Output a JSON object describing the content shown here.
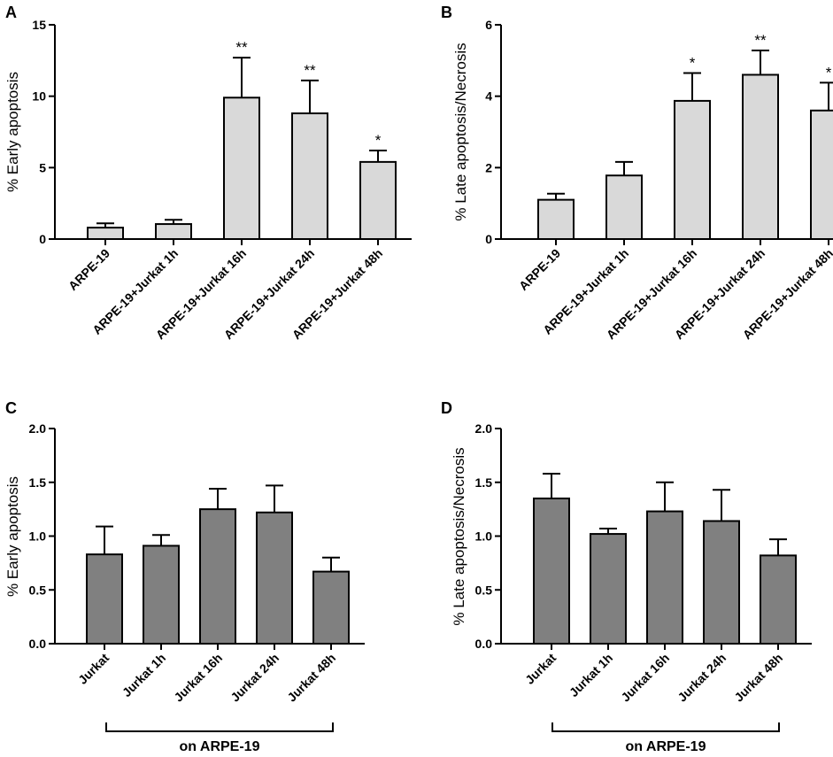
{
  "chart_data": [
    {
      "panel": "A",
      "type": "bar",
      "title": "",
      "xlabel": "",
      "ylabel": "% Early apoptosis",
      "ylim": [
        0,
        15
      ],
      "yticks": [
        "0",
        "5",
        "10",
        "15"
      ],
      "bar_color": "#d9d9d9",
      "categories": [
        "ARPE-19",
        "ARPE-19+Jurkat 1h",
        "ARPE-19+Jurkat 16h",
        "ARPE-19+Jurkat 24h",
        "ARPE-19+Jurkat 48h"
      ],
      "values": [
        0.8,
        1.05,
        9.9,
        8.8,
        5.4
      ],
      "errors": [
        0.3,
        0.3,
        2.8,
        2.3,
        0.8
      ],
      "significance": [
        "",
        "",
        "**",
        "**",
        "*"
      ],
      "bracket_label": ""
    },
    {
      "panel": "B",
      "type": "bar",
      "title": "",
      "xlabel": "",
      "ylabel": "% Late apoptosis/Necrosis",
      "ylim": [
        0,
        6
      ],
      "yticks": [
        "0",
        "2",
        "4",
        "6"
      ],
      "bar_color": "#d9d9d9",
      "categories": [
        "ARPE-19",
        "ARPE-19+Jurkat 1h",
        "ARPE-19+Jurkat  16h",
        "ARPE-19+Jurkat  24h",
        "ARPE-19+Jurkat  48h"
      ],
      "values": [
        1.1,
        1.78,
        3.87,
        4.6,
        3.6
      ],
      "errors": [
        0.17,
        0.38,
        0.78,
        0.68,
        0.78
      ],
      "significance": [
        "",
        "",
        "*",
        "**",
        "*"
      ],
      "bracket_label": ""
    },
    {
      "panel": "C",
      "type": "bar",
      "title": "",
      "xlabel": "",
      "ylabel": "% Early apoptosis",
      "ylim": [
        0,
        2
      ],
      "yticks": [
        "0.0",
        "0.5",
        "1.0",
        "1.5",
        "2.0"
      ],
      "bar_color": "#808080",
      "categories": [
        "Jurkat",
        "Jurkat 1h",
        "Jurkat 16h",
        "Jurkat 24h",
        "Jurkat 48h"
      ],
      "values": [
        0.83,
        0.91,
        1.25,
        1.22,
        0.67
      ],
      "errors": [
        0.26,
        0.1,
        0.19,
        0.25,
        0.13
      ],
      "significance": [
        "",
        "",
        "",
        "",
        ""
      ],
      "bracket_label": "on ARPE-19"
    },
    {
      "panel": "D",
      "type": "bar",
      "title": "",
      "xlabel": "",
      "ylabel": "% Late apoptosis/Necrosis",
      "ylim": [
        0,
        2
      ],
      "yticks": [
        "0.0",
        "0.5",
        "1.0",
        "1.5",
        "2.0"
      ],
      "bar_color": "#808080",
      "categories": [
        "Jurkat",
        "Jurkat 1h",
        "Jurkat 16h",
        "Jurkat 24h",
        "Jurkat 48h"
      ],
      "values": [
        1.35,
        1.02,
        1.23,
        1.14,
        0.82
      ],
      "errors": [
        0.23,
        0.05,
        0.27,
        0.29,
        0.15
      ],
      "significance": [
        "",
        "",
        "",
        "",
        ""
      ],
      "bracket_label": "on ARPE-19"
    }
  ]
}
